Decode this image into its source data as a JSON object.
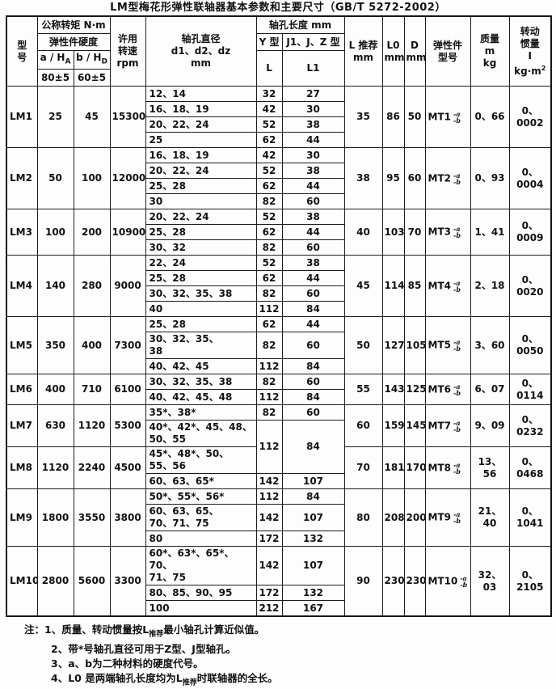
{
  "title": "LM型梅花形弹性联轴器基本参数和主要尺寸（GB/T 5272-2002）",
  "table": {
    "header": {
      "model": "型\n号",
      "torque": "公称转矩 N·m",
      "hardness": "弹性件硬度",
      "a_pre": "a / H",
      "a_sub": "A",
      "b_pre": "b / H",
      "b_sub": "D",
      "a_tol": "80±5",
      "b_tol": "60±5",
      "speed": "许用\n转速\nrpm",
      "bore": "轴孔直径\nd1、d2、dz\nmm",
      "bore_len": "轴孔长度 mm",
      "y_type": "Y 型",
      "jz_type": "J1、J、Z 型",
      "L": "L",
      "L1": "L1",
      "l_rec": "L 推荐\nmm",
      "l0": "L0\nmm",
      "d": "D\nmm",
      "elastic": "弹性件\n型号",
      "mass": "质量\nm\nkg",
      "inertia_lines": "转动\n惯量\nI",
      "inertia_unit_pre": "kg·m",
      "inertia_unit_sup": "2"
    },
    "mt_suffix": {
      "top": "-a",
      "bottom": "-b"
    },
    "groups": [
      {
        "model": "LM1",
        "a": "25",
        "b": "45",
        "rpm": "15300",
        "rows": [
          {
            "bore": "12、14",
            "l": "32",
            "l1": "27"
          },
          {
            "bore": "16、18、19",
            "l": "42",
            "l1": "30"
          },
          {
            "bore": "20、22、24",
            "l": "52",
            "l1": "38"
          },
          {
            "bore": "25",
            "l": "62",
            "l1": "44"
          }
        ],
        "l_rec": "35",
        "l0": "86",
        "d": "50",
        "mt": "MT1",
        "mass": "0、66",
        "inertia": "0、0002"
      },
      {
        "model": "LM2",
        "a": "50",
        "b": "100",
        "rpm": "12000",
        "rows": [
          {
            "bore": "16、18、19",
            "l": "42",
            "l1": "30"
          },
          {
            "bore": "20、22、24",
            "l": "52",
            "l1": "38"
          },
          {
            "bore": "25、28",
            "l": "62",
            "l1": "44"
          },
          {
            "bore": "30",
            "l": "82",
            "l1": "60"
          }
        ],
        "l_rec": "38",
        "l0": "95",
        "d": "60",
        "mt": "MT2",
        "mass": "0、93",
        "inertia": "0、0004"
      },
      {
        "model": "LM3",
        "a": "100",
        "b": "200",
        "rpm": "10900",
        "rows": [
          {
            "bore": "20、22、24",
            "l": "52",
            "l1": "38"
          },
          {
            "bore": "25、28",
            "l": "62",
            "l1": "44"
          },
          {
            "bore": "30、32",
            "l": "82",
            "l1": "60"
          }
        ],
        "l_rec": "40",
        "l0": "103",
        "d": "70",
        "mt": "MT3",
        "mass": "1、41",
        "inertia": "0、0009"
      },
      {
        "model": "LM4",
        "a": "140",
        "b": "280",
        "rpm": "9000",
        "rows": [
          {
            "bore": "22、24",
            "l": "52",
            "l1": "38"
          },
          {
            "bore": "25、28",
            "l": "62",
            "l1": "44"
          },
          {
            "bore": "30、32、35、38",
            "l": "82",
            "l1": "60"
          },
          {
            "bore": "40",
            "l": "112",
            "l1": "84"
          }
        ],
        "l_rec": "45",
        "l0": "114",
        "d": "85",
        "mt": "MT4",
        "mass": "2、18",
        "inertia": "0、0020"
      },
      {
        "model": "LM5",
        "a": "350",
        "b": "400",
        "rpm": "7300",
        "rows": [
          {
            "bore": "25、28",
            "l": "62",
            "l1": "44"
          },
          {
            "bore": "30、32、35、\n38",
            "l": "82",
            "l1": "60"
          },
          {
            "bore": "40、42、45",
            "l": "112",
            "l1": "84"
          }
        ],
        "l_rec": "50",
        "l0": "127",
        "d": "105",
        "mt": "MT5",
        "mass": "3、60",
        "inertia": "0、0050"
      },
      {
        "model": "LM6",
        "a": "400",
        "b": "710",
        "rpm": "6100",
        "rows": [
          {
            "bore": "30、32、35、38",
            "l": "82",
            "l1": "60"
          },
          {
            "bore": "40、42、45、48",
            "l": "112",
            "l1": "84"
          }
        ],
        "l_rec": "55",
        "l0": "143",
        "d": "125",
        "mt": "MT6",
        "mass": "6、07",
        "inertia": "0、0114"
      },
      {
        "model": "LM7",
        "a": "630",
        "b": "1120",
        "rpm": "5300",
        "rows": [
          {
            "bore": "35*、38*",
            "l": "82",
            "l1": "60"
          },
          {
            "bore": "40*、42*、45、48、\n50、55",
            "l": "112",
            "l1": "84",
            "lspan": 2
          }
        ],
        "l_rec": "60",
        "l0": "159",
        "d": "145",
        "mt": "MT7",
        "mass": "9、09",
        "inertia": "0、0232"
      },
      {
        "model": "LM8",
        "a": "1120",
        "b": "2240",
        "rpm": "4500",
        "rows": [
          {
            "bore": "45*、48*、50、\n55、56",
            "merged": true
          },
          {
            "bore": "60、63、65*",
            "l": "142",
            "l1": "107"
          }
        ],
        "l_rec": "70",
        "l0": "181",
        "d": "170",
        "mt": "MT8",
        "mass": "13、56",
        "inertia": "0、0468"
      },
      {
        "model": "LM9",
        "a": "1800",
        "b": "3550",
        "rpm": "3800",
        "rows": [
          {
            "bore": "50*、55*、56*",
            "l": "112",
            "l1": "84"
          },
          {
            "bore": "60、63、65、\n70、71、75",
            "l": "142",
            "l1": "107"
          },
          {
            "bore": "80",
            "l": "172",
            "l1": "132"
          }
        ],
        "l_rec": "80",
        "l0": "208",
        "d": "200",
        "mt": "MT9",
        "mass": "21、40",
        "inertia": "0、1041"
      },
      {
        "model": "LM10",
        "a": "2800",
        "b": "5600",
        "rpm": "3300",
        "rows": [
          {
            "bore": "60*、63*、65*、70、\n71、75",
            "l": "142",
            "l1": "107"
          },
          {
            "bore": "80、85、90、95",
            "l": "172",
            "l1": "132"
          },
          {
            "bore": "100",
            "l": "212",
            "l1": "167"
          }
        ],
        "l_rec": "90",
        "l0": "230",
        "d": "230",
        "mt": "MT10",
        "mass": "32、03",
        "inertia": "0、2105"
      }
    ]
  },
  "notes": {
    "prefix": "注：",
    "n1": {
      "pre": "1、质量、转动惯量按L",
      "sub": "推荐",
      "post": "最小轴孔计算近似值。"
    },
    "n2": "2、带*号轴孔直径可用于Z型、J型轴孔。",
    "n3": "3、a、b为二种材料的硬度代号。",
    "n4": {
      "pre": "4、L0 是两端轴孔长度均为L",
      "sub": "推荐",
      "post": "时联轴器的全长。"
    }
  }
}
